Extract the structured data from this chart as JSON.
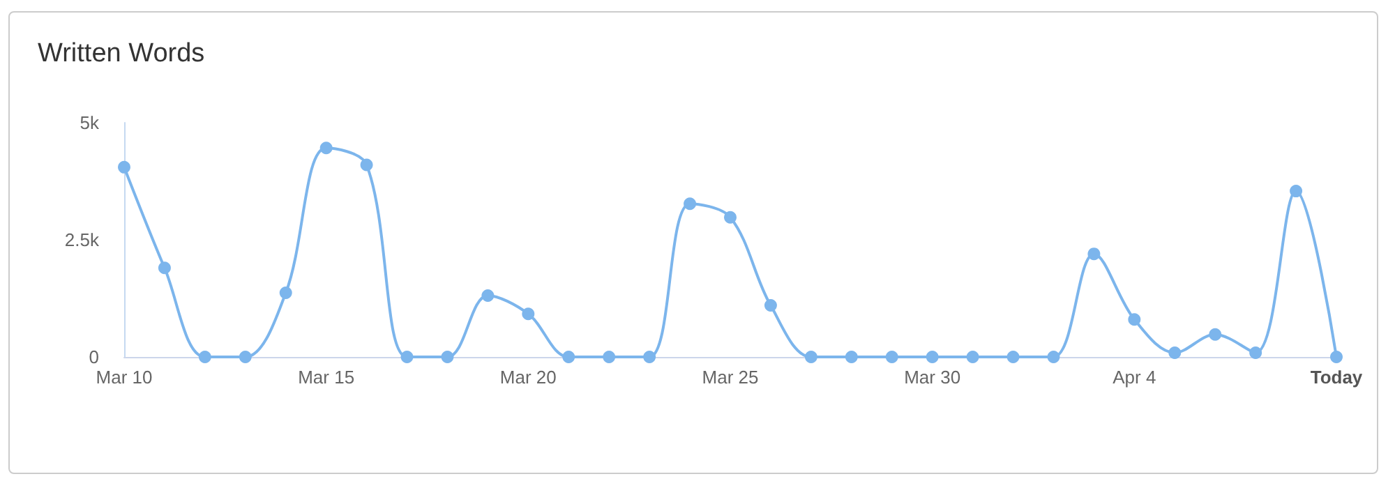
{
  "chart_data": {
    "type": "line",
    "title": "Written Words",
    "categories": [
      "Mar 10",
      null,
      null,
      null,
      null,
      "Mar 15",
      null,
      null,
      null,
      null,
      "Mar 20",
      null,
      null,
      null,
      null,
      "Mar 25",
      null,
      null,
      null,
      null,
      "Mar 30",
      null,
      null,
      null,
      null,
      "Apr 4",
      null,
      null,
      null,
      null,
      "Today"
    ],
    "series": [
      {
        "color": "#7cb5ec",
        "values": [
          4050,
          1900,
          0,
          0,
          1370,
          4460,
          4100,
          0,
          0,
          1310,
          920,
          0,
          0,
          0,
          3270,
          2980,
          1100,
          0,
          0,
          0,
          0,
          0,
          0,
          0,
          2200,
          800,
          90,
          480,
          90,
          3540,
          0
        ]
      }
    ],
    "ylim": [
      0,
      5000
    ],
    "yticks": [
      0,
      {
        "value": 2500,
        "label": "2.5k"
      },
      {
        "value": 5000,
        "label": "5k"
      }
    ],
    "grid": false,
    "marker": "circle",
    "line_style": "solid"
  }
}
